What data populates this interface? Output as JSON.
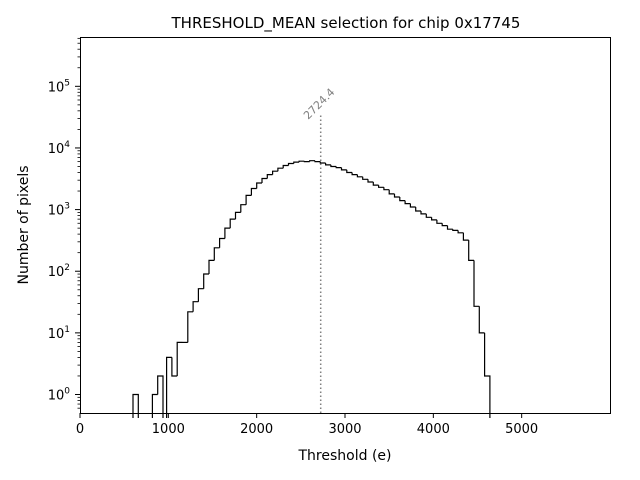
{
  "chart_data": {
    "type": "histogram",
    "title": "THRESHOLD_MEAN selection for chip 0x17745",
    "xlabel": "Threshold (e)",
    "ylabel": "Number of pixels",
    "xlim": [
      0,
      6000
    ],
    "ylim_log10": [
      -0.3,
      5.8
    ],
    "yscale": "log",
    "x_ticks": [
      0,
      1000,
      2000,
      3000,
      4000,
      5000
    ],
    "x_tick_labels": [
      "0",
      "1000",
      "2000",
      "3000",
      "4000",
      "5000"
    ],
    "y_ticks_log10": [
      0,
      1,
      2,
      3,
      4,
      5
    ],
    "y_tick_labels": [
      {
        "base": "10",
        "exp": "0"
      },
      {
        "base": "10",
        "exp": "1"
      },
      {
        "base": "10",
        "exp": "2"
      },
      {
        "base": "10",
        "exp": "3"
      },
      {
        "base": "10",
        "exp": "4"
      },
      {
        "base": "10",
        "exp": "5"
      }
    ],
    "mean_line": {
      "value": 2724.4,
      "label": "2724.4",
      "color": "#808080",
      "top_count": 35000
    },
    "line_color": "#000000",
    "bin_width": 60,
    "bins": [
      [
        600,
        1
      ],
      [
        820,
        1
      ],
      [
        880,
        2
      ],
      [
        980,
        4
      ],
      [
        1040,
        2
      ],
      [
        1100,
        7
      ],
      [
        1160,
        7
      ],
      [
        1220,
        22
      ],
      [
        1280,
        32
      ],
      [
        1340,
        52
      ],
      [
        1400,
        90
      ],
      [
        1460,
        150
      ],
      [
        1520,
        240
      ],
      [
        1580,
        340
      ],
      [
        1640,
        500
      ],
      [
        1700,
        700
      ],
      [
        1760,
        900
      ],
      [
        1820,
        1200
      ],
      [
        1880,
        1700
      ],
      [
        1940,
        2200
      ],
      [
        2000,
        2700
      ],
      [
        2060,
        3200
      ],
      [
        2120,
        3700
      ],
      [
        2180,
        4200
      ],
      [
        2240,
        4700
      ],
      [
        2300,
        5200
      ],
      [
        2360,
        5600
      ],
      [
        2420,
        5900
      ],
      [
        2480,
        6100
      ],
      [
        2540,
        6000
      ],
      [
        2600,
        6200
      ],
      [
        2660,
        6000
      ],
      [
        2720,
        5700
      ],
      [
        2780,
        5300
      ],
      [
        2840,
        5000
      ],
      [
        2900,
        4800
      ],
      [
        2960,
        4400
      ],
      [
        3020,
        4000
      ],
      [
        3080,
        3700
      ],
      [
        3140,
        3400
      ],
      [
        3200,
        3100
      ],
      [
        3260,
        2800
      ],
      [
        3320,
        2500
      ],
      [
        3380,
        2300
      ],
      [
        3440,
        2100
      ],
      [
        3500,
        1800
      ],
      [
        3560,
        1600
      ],
      [
        3620,
        1400
      ],
      [
        3680,
        1250
      ],
      [
        3740,
        1100
      ],
      [
        3800,
        950
      ],
      [
        3860,
        850
      ],
      [
        3920,
        750
      ],
      [
        3980,
        680
      ],
      [
        4040,
        600
      ],
      [
        4100,
        550
      ],
      [
        4160,
        480
      ],
      [
        4220,
        460
      ],
      [
        4280,
        420
      ],
      [
        4340,
        320
      ],
      [
        4400,
        150
      ],
      [
        4460,
        27
      ],
      [
        4520,
        10
      ],
      [
        4580,
        2
      ]
    ]
  }
}
